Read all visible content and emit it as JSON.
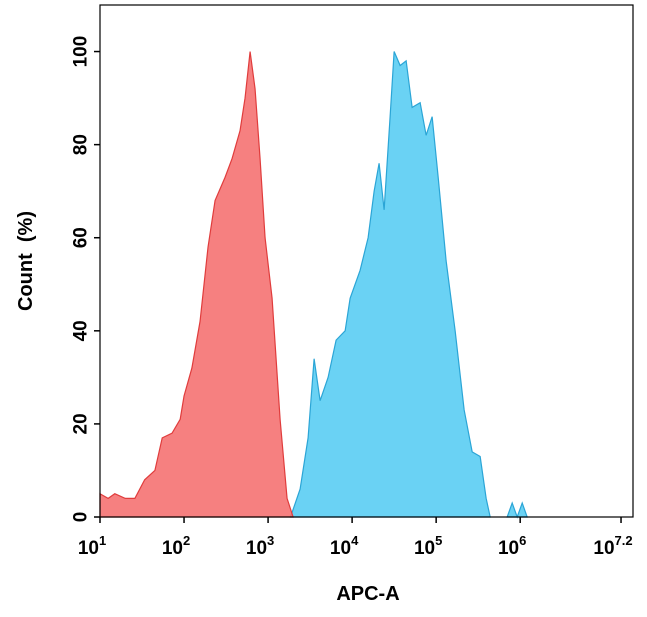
{
  "chart_data": {
    "type": "area",
    "x_label": "APC-A",
    "y_label": "Count  (%)",
    "xscale": "log",
    "xlim": [
      10,
      22000000
    ],
    "ylim": [
      0,
      110
    ],
    "xticks": [
      {
        "value": 10,
        "label": "10",
        "superscript": "1"
      },
      {
        "value": 100,
        "label": "10",
        "superscript": "2"
      },
      {
        "value": 1000,
        "label": "10",
        "superscript": "3"
      },
      {
        "value": 10000,
        "label": "10",
        "superscript": "4"
      },
      {
        "value": 100000,
        "label": "10",
        "superscript": "5"
      },
      {
        "value": 1000000,
        "label": "10",
        "superscript": "6"
      },
      {
        "value": 15848932,
        "label": "10",
        "superscript": "7.2"
      }
    ],
    "yticks": [
      0,
      20,
      40,
      60,
      80,
      100
    ],
    "series": [
      {
        "color": "#f46a6a",
        "edge": "#e03c3c",
        "x": [
          10,
          12.5,
          15,
          20,
          26,
          34,
          45,
          55,
          72,
          90,
          100,
          124,
          155,
          193,
          234,
          308,
          373,
          464,
          532,
          611,
          700,
          803,
          921,
          1116,
          1390,
          1683,
          1986
        ],
        "values": [
          5,
          4,
          5,
          4,
          4,
          8,
          10,
          17,
          18,
          21,
          26,
          32,
          42,
          58,
          68,
          73,
          77,
          83,
          90,
          100,
          92,
          77,
          60,
          47,
          21,
          4,
          0
        ]
      },
      {
        "color": "#62d0f3",
        "edge": "#2ba5d6",
        "x": [
          1850,
          2405,
          2993,
          3530,
          4160,
          5180,
          6450,
          8260,
          9470,
          12450,
          15500,
          18280,
          20950,
          24040,
          28320,
          31620,
          37270,
          43950,
          51800,
          64500,
          76000,
          89600,
          105700,
          131500,
          168300,
          215400,
          268300,
          334000,
          393500,
          439500,
          570000,
          700000,
          803000,
          921000,
          1057000,
          1211000
        ],
        "values": [
          0,
          6,
          17,
          34,
          25,
          30,
          38,
          40,
          47,
          53,
          60,
          70,
          76,
          66,
          86,
          100,
          97,
          98,
          88,
          89,
          82,
          86,
          73,
          55,
          40,
          23,
          14,
          13,
          4,
          0,
          null,
          0,
          3,
          0,
          3,
          0
        ]
      }
    ]
  }
}
